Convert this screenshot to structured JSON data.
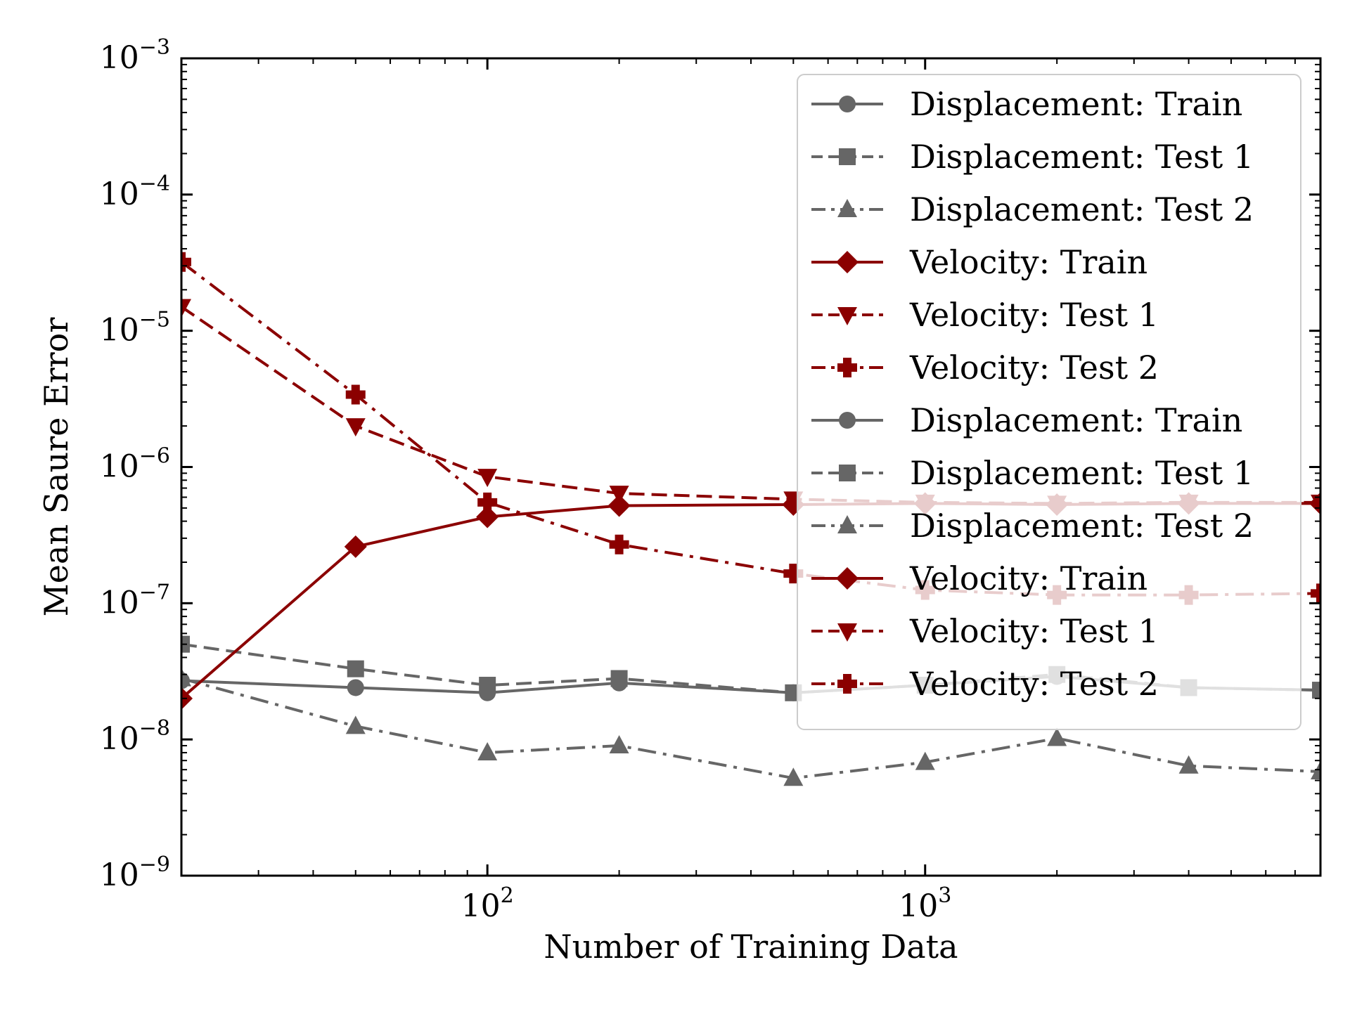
{
  "chart_data": {
    "type": "line",
    "xlabel": "Number of Training Data",
    "ylabel": "Mean Saure Error",
    "xscale": "log",
    "yscale": "log",
    "xlim": [
      20,
      8000
    ],
    "ylim": [
      1e-09,
      0.001
    ],
    "grid": false,
    "legend_placement": "top-right",
    "x_tick_labels": [
      {
        "value": 100,
        "base": "10",
        "exp": "2"
      },
      {
        "value": 1000,
        "base": "10",
        "exp": "3"
      }
    ],
    "y_tick_labels": [
      {
        "value": 1e-09,
        "base": "10",
        "exp": "−9"
      },
      {
        "value": 1e-08,
        "base": "10",
        "exp": "−8"
      },
      {
        "value": 1e-07,
        "base": "10",
        "exp": "−7"
      },
      {
        "value": 1e-06,
        "base": "10",
        "exp": "−6"
      },
      {
        "value": 1e-05,
        "base": "10",
        "exp": "−5"
      },
      {
        "value": 0.0001,
        "base": "10",
        "exp": "−4"
      },
      {
        "value": 0.001,
        "base": "10",
        "exp": "−3"
      }
    ],
    "x": [
      20,
      50,
      100,
      200,
      500,
      1000,
      2000,
      4000,
      8000
    ],
    "series": [
      {
        "name": "Displacement: Train",
        "color": "#666666",
        "dash": "solid",
        "marker": "circle",
        "values": [
          2.7e-08,
          2.4e-08,
          2.2e-08,
          2.6e-08,
          2.2e-08,
          2.5e-08,
          2.9e-08,
          2.4e-08,
          2.3e-08
        ]
      },
      {
        "name": "Displacement: Test 1",
        "color": "#666666",
        "dash": "dashed",
        "marker": "square",
        "values": [
          5e-08,
          3.3e-08,
          2.5e-08,
          2.8e-08,
          2.2e-08,
          2.5e-08,
          3e-08,
          2.4e-08,
          2.3e-08
        ]
      },
      {
        "name": "Displacement: Test 2",
        "color": "#666666",
        "dash": "dashdot",
        "marker": "triangle-up",
        "values": [
          2.8e-08,
          1.25e-08,
          8e-09,
          9e-09,
          5.2e-09,
          6.8e-09,
          1.02e-08,
          6.4e-09,
          5.8e-09
        ]
      },
      {
        "name": "Velocity: Train",
        "color": "#8b0000",
        "dash": "solid",
        "marker": "diamond",
        "values": [
          2e-08,
          2.6e-07,
          4.3e-07,
          5.2e-07,
          5.3e-07,
          5.4e-07,
          5.3e-07,
          5.4e-07,
          5.4e-07
        ]
      },
      {
        "name": "Velocity: Test 1",
        "color": "#8b0000",
        "dash": "dashed",
        "marker": "triangle-down",
        "values": [
          1.5e-05,
          2e-06,
          8.5e-07,
          6.4e-07,
          5.8e-07,
          5.5e-07,
          5.4e-07,
          5.5e-07,
          5.5e-07
        ]
      },
      {
        "name": "Velocity: Test 2",
        "color": "#8b0000",
        "dash": "dashdot",
        "marker": "plus",
        "values": [
          3.2e-05,
          3.4e-06,
          5.5e-07,
          2.7e-07,
          1.65e-07,
          1.25e-07,
          1.15e-07,
          1.15e-07,
          1.18e-07
        ]
      }
    ],
    "legend_entries": [
      {
        "label": "Displacement: Train",
        "series": 0
      },
      {
        "label": "Displacement: Test 1",
        "series": 1
      },
      {
        "label": "Displacement: Test 2",
        "series": 2
      },
      {
        "label": "Velocity: Train",
        "series": 3
      },
      {
        "label": "Velocity: Test 1",
        "series": 4
      },
      {
        "label": "Velocity: Test 2",
        "series": 5
      },
      {
        "label": "Displacement: Train",
        "series": 0
      },
      {
        "label": "Displacement: Test 1",
        "series": 1
      },
      {
        "label": "Displacement: Test 2",
        "series": 2
      },
      {
        "label": "Velocity: Train",
        "series": 3
      },
      {
        "label": "Velocity: Test 1",
        "series": 4
      },
      {
        "label": "Velocity: Test 2",
        "series": 5
      }
    ]
  }
}
